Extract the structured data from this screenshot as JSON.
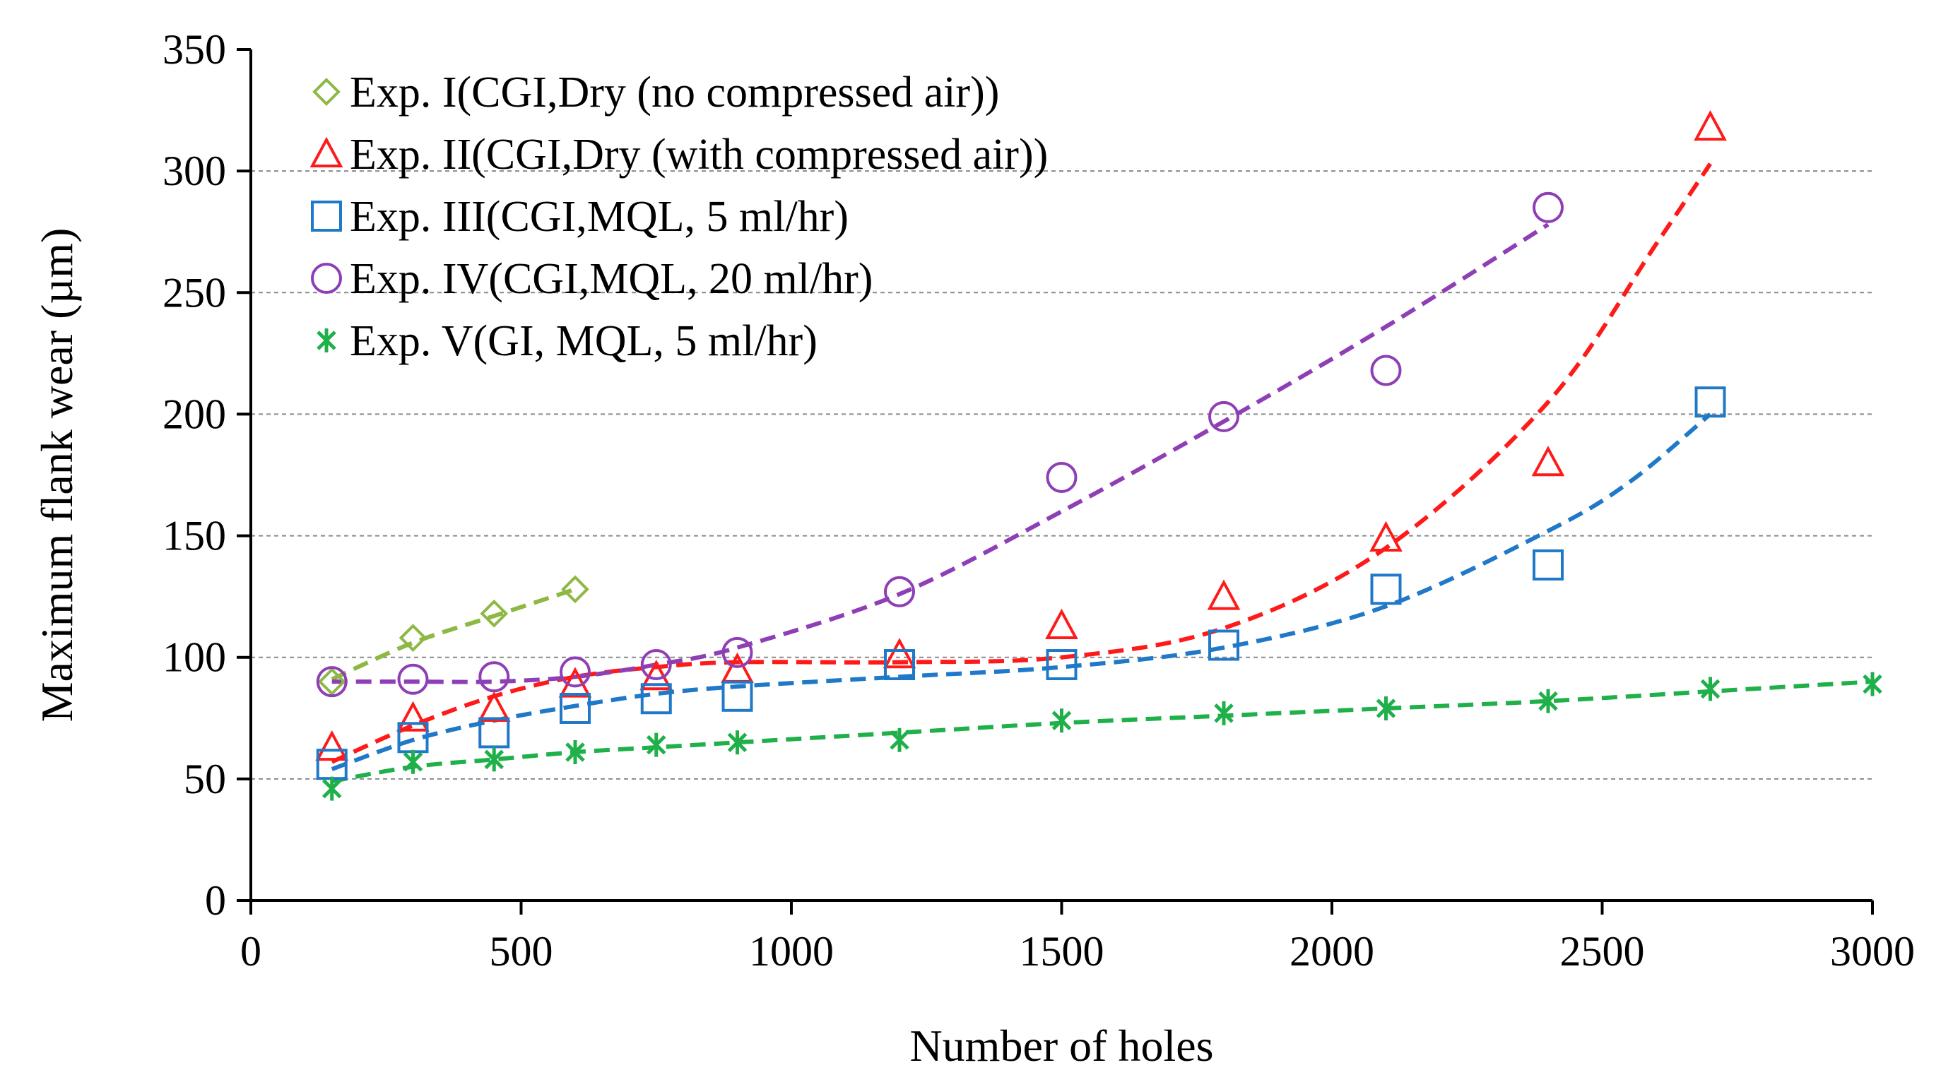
{
  "chart_data": {
    "type": "scatter",
    "title": "",
    "xlabel": "Number of holes",
    "ylabel": "Maximum flank wear (µm)",
    "xlim": [
      0,
      3000
    ],
    "ylim": [
      0,
      350
    ],
    "xticks": [
      0,
      500,
      1000,
      1500,
      2000,
      2500,
      3000
    ],
    "yticks": [
      0,
      50,
      100,
      150,
      200,
      250,
      300,
      350
    ],
    "grid": "horizontal dashed",
    "legend_position": "top-left",
    "series": [
      {
        "name": "Exp. I(CGI,Dry (no compressed air))",
        "marker": "diamond",
        "color": "#8db843",
        "x": [
          150,
          300,
          450,
          600
        ],
        "y": [
          90,
          108,
          118,
          128
        ],
        "trend": [
          [
            150,
            91
          ],
          [
            300,
            106
          ],
          [
            450,
            117
          ],
          [
            600,
            128
          ]
        ]
      },
      {
        "name": "Exp. II(CGI,Dry (with compressed air))",
        "marker": "triangle",
        "color": "#ff1a1a",
        "x": [
          150,
          300,
          450,
          600,
          750,
          900,
          1200,
          1500,
          1800,
          2100,
          2400,
          2700
        ],
        "y": [
          63,
          75,
          79,
          89,
          92,
          95,
          101,
          113,
          125,
          149,
          180,
          318
        ],
        "trend": [
          [
            150,
            57
          ],
          [
            300,
            72
          ],
          [
            450,
            84
          ],
          [
            600,
            92
          ],
          [
            750,
            96
          ],
          [
            900,
            98
          ],
          [
            1200,
            98
          ],
          [
            1500,
            100
          ],
          [
            1800,
            112
          ],
          [
            2100,
            145
          ],
          [
            2400,
            205
          ],
          [
            2600,
            270
          ],
          [
            2700,
            303
          ]
        ]
      },
      {
        "name": "Exp. III(CGI,MQL, 5 ml/hr)",
        "marker": "square",
        "color": "#1f78c8",
        "x": [
          150,
          300,
          450,
          600,
          750,
          900,
          1200,
          1500,
          1800,
          2100,
          2400,
          2700
        ],
        "y": [
          56,
          67,
          69,
          79,
          83,
          84,
          97,
          97,
          105,
          128,
          138,
          205
        ],
        "trend": [
          [
            150,
            54
          ],
          [
            300,
            66
          ],
          [
            450,
            74
          ],
          [
            600,
            80
          ],
          [
            750,
            85
          ],
          [
            900,
            88
          ],
          [
            1200,
            92
          ],
          [
            1500,
            96
          ],
          [
            1800,
            104
          ],
          [
            2100,
            121
          ],
          [
            2400,
            152
          ],
          [
            2550,
            172
          ],
          [
            2700,
            200
          ]
        ]
      },
      {
        "name": "Exp. IV(CGI,MQL, 20 ml/hr)",
        "marker": "circle",
        "color": "#8e3fb5",
        "x": [
          150,
          300,
          450,
          600,
          750,
          900,
          1200,
          1500,
          1800,
          2100,
          2400
        ],
        "y": [
          90,
          91,
          92,
          94,
          97,
          102,
          127,
          174,
          199,
          218,
          285
        ],
        "trend": [
          [
            150,
            90
          ],
          [
            300,
            90
          ],
          [
            450,
            90
          ],
          [
            600,
            92
          ],
          [
            750,
            97
          ],
          [
            900,
            104
          ],
          [
            1200,
            126
          ],
          [
            1500,
            160
          ],
          [
            1800,
            197
          ],
          [
            2100,
            236
          ],
          [
            2400,
            278
          ]
        ]
      },
      {
        "name": "Exp. V(GI, MQL, 5 ml/hr)",
        "marker": "asterisk",
        "color": "#1fb04a",
        "x": [
          150,
          300,
          450,
          600,
          750,
          900,
          1200,
          1500,
          1800,
          2100,
          2400,
          2700,
          3000
        ],
        "y": [
          46,
          57,
          58,
          61,
          64,
          65,
          66,
          74,
          77,
          79,
          82,
          87,
          89
        ],
        "trend": [
          [
            150,
            49
          ],
          [
            300,
            55
          ],
          [
            450,
            58
          ],
          [
            600,
            61
          ],
          [
            750,
            63
          ],
          [
            900,
            65
          ],
          [
            1200,
            69
          ],
          [
            1500,
            73
          ],
          [
            1800,
            76
          ],
          [
            2100,
            79
          ],
          [
            2400,
            82
          ],
          [
            2700,
            86
          ],
          [
            3000,
            90
          ]
        ]
      }
    ]
  }
}
